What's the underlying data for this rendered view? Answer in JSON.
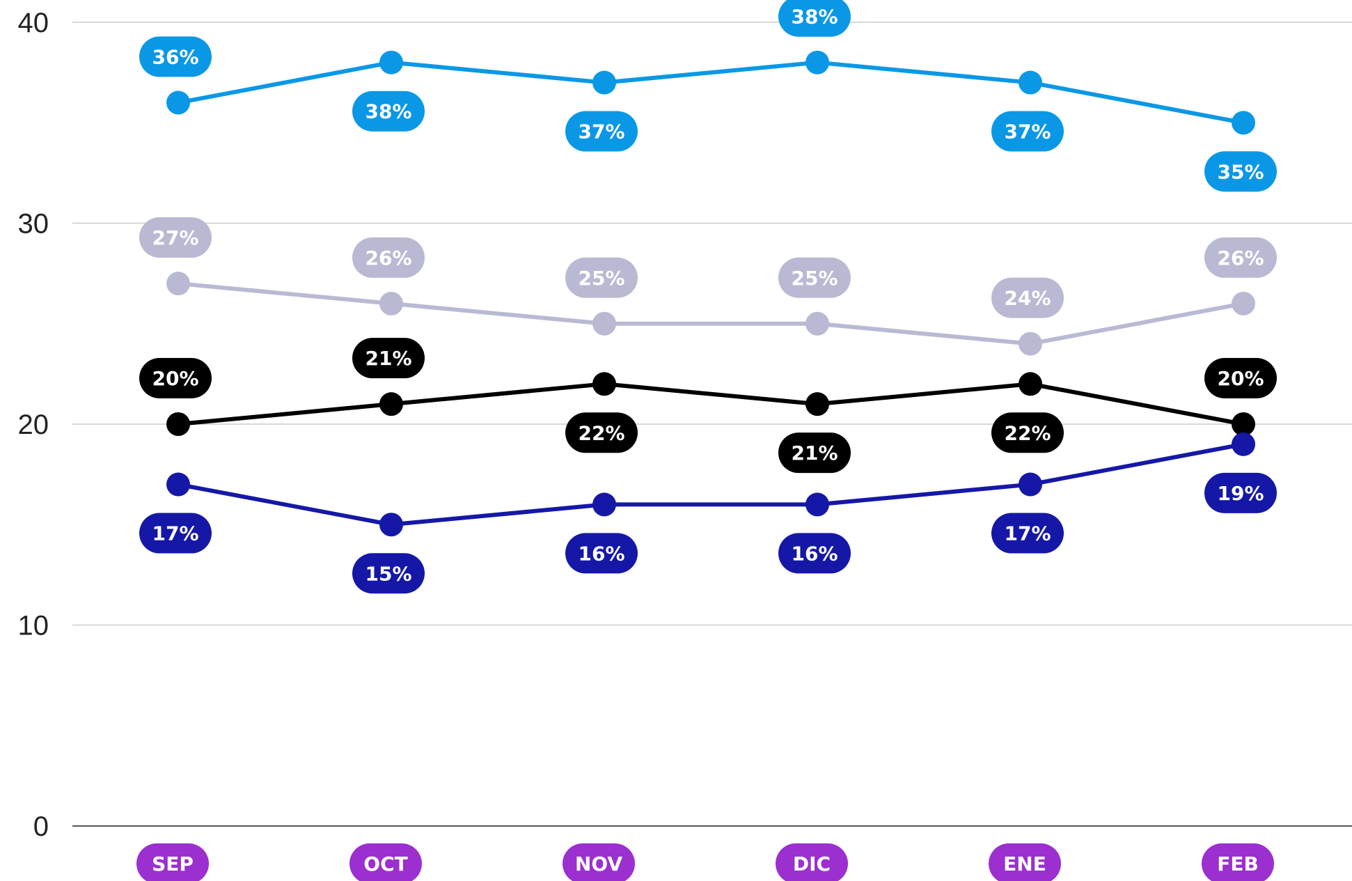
{
  "chart_data": {
    "type": "line",
    "categories": [
      "SEP",
      "OCT",
      "NOV",
      "DIC",
      "ENE",
      "FEB"
    ],
    "ylim": [
      0,
      40
    ],
    "yticks": [
      0,
      10,
      20,
      30,
      40
    ],
    "grid": true,
    "category_badge_color": "#9b2fd0",
    "series": [
      {
        "color": "#0a98e6",
        "values": [
          36,
          38,
          37,
          38,
          37,
          35
        ],
        "labels": [
          "36%",
          "38%",
          "37%",
          "38%",
          "37%",
          "35%"
        ],
        "label_pos": [
          "above",
          "below",
          "below",
          "above",
          "below",
          "below"
        ]
      },
      {
        "color": "#b9b9d4",
        "values": [
          27,
          26,
          25,
          25,
          24,
          26
        ],
        "labels": [
          "27%",
          "26%",
          "25%",
          "25%",
          "24%",
          "26%"
        ],
        "label_pos": [
          "above",
          "above",
          "above",
          "above",
          "above",
          "above"
        ]
      },
      {
        "color": "#000000",
        "values": [
          20,
          21,
          22,
          21,
          22,
          20
        ],
        "labels": [
          "20%",
          "21%",
          "22%",
          "21%",
          "22%",
          "20%"
        ],
        "label_pos": [
          "above",
          "above",
          "below",
          "below",
          "below",
          "above"
        ]
      },
      {
        "color": "#1518a6",
        "values": [
          17,
          15,
          16,
          16,
          17,
          19
        ],
        "labels": [
          "17%",
          "15%",
          "16%",
          "16%",
          "17%",
          "19%"
        ],
        "label_pos": [
          "below",
          "below",
          "below",
          "below",
          "below",
          "below"
        ]
      }
    ]
  }
}
